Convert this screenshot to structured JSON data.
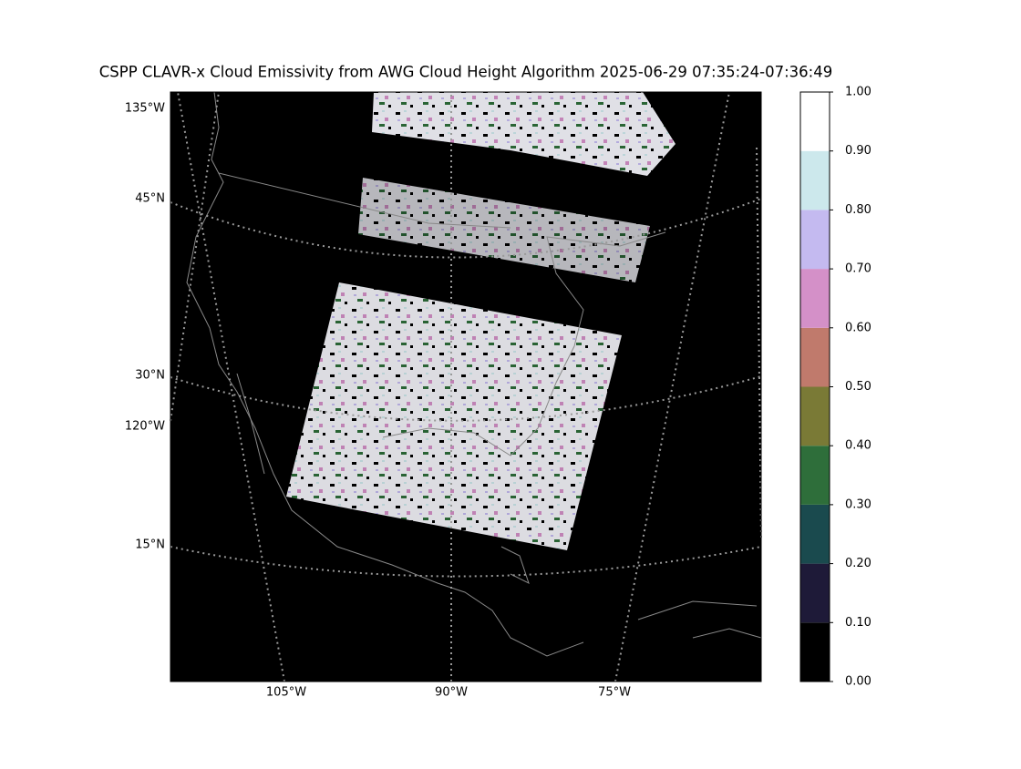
{
  "title": "CSPP CLAVR-x Cloud Emissivity from AWG Cloud Height Algorithm 2025-06-29 07:35:24-07:36:49",
  "map": {
    "lat_labels": [
      "45°N",
      "30°N",
      "15°N"
    ],
    "lon_labels_left": [
      "135°W",
      "120°W"
    ],
    "lon_labels_bottom": [
      "105°W",
      "90°W",
      "75°W"
    ]
  },
  "colorbar": {
    "lim": [
      0,
      1
    ],
    "ticks": [
      {
        "value": 0,
        "label": "0.00"
      },
      {
        "value": 0.1,
        "label": "0.10"
      },
      {
        "value": 0.2,
        "label": "0.20"
      },
      {
        "value": 0.3,
        "label": "0.30"
      },
      {
        "value": 0.4,
        "label": "0.40"
      },
      {
        "value": 0.5,
        "label": "0.50"
      },
      {
        "value": 0.6,
        "label": "0.60"
      },
      {
        "value": 0.7,
        "label": "0.70"
      },
      {
        "value": 0.8,
        "label": "0.80"
      },
      {
        "value": 0.9,
        "label": "0.90"
      },
      {
        "value": 1,
        "label": "1.00"
      }
    ],
    "colors": [
      "#000000",
      "#1e1a38",
      "#1a4a4e",
      "#2e6e3a",
      "#7a7a36",
      "#c07a6c",
      "#d490c8",
      "#c4baf0",
      "#cce8ec",
      "#ffffff"
    ]
  }
}
